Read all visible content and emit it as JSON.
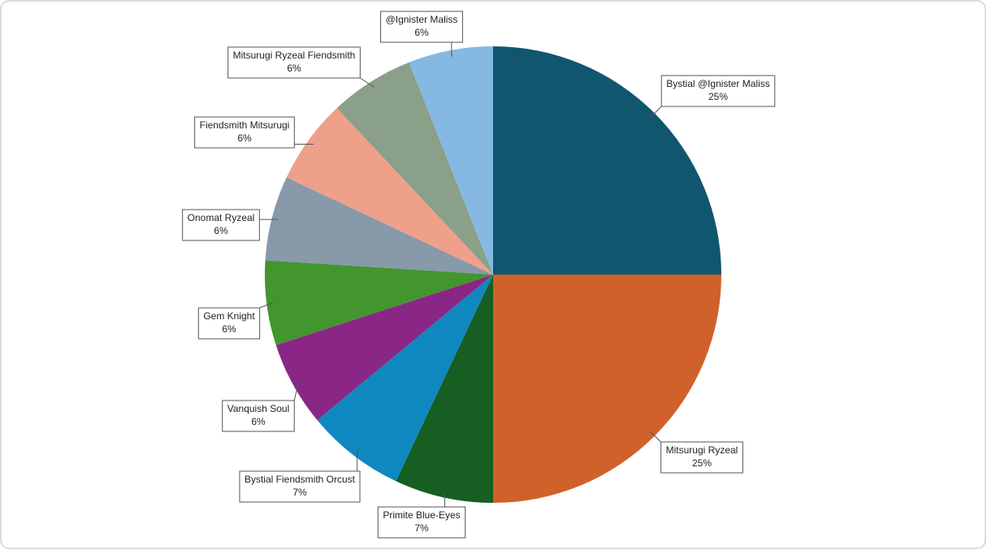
{
  "chart_data": {
    "type": "pie",
    "categories": [
      "Bystial @Ignister Maliss",
      "Mitsurugi Ryzeal",
      "Primite Blue-Eyes",
      "Bystial Fiendsmith Orcust",
      "Vanquish Soul",
      "Gem Knight",
      "Onomat Ryzeal",
      "Fiendsmith Mitsurugi",
      "Mitsurugi Ryzeal Fiendsmith",
      "@Ignister Maliss"
    ],
    "values": [
      25,
      25,
      7,
      7,
      6,
      6,
      6,
      6,
      6,
      6
    ],
    "value_labels": [
      "25%",
      "25%",
      "7%",
      "7%",
      "6%",
      "6%",
      "6%",
      "6%",
      "6%",
      "6%"
    ],
    "colors": [
      "#10566f",
      "#d0612a",
      "#165e22",
      "#0f88c0",
      "#8a2685",
      "#43952e",
      "#8899aa",
      "#eea08a",
      "#8aa088",
      "#86b9e2"
    ]
  }
}
